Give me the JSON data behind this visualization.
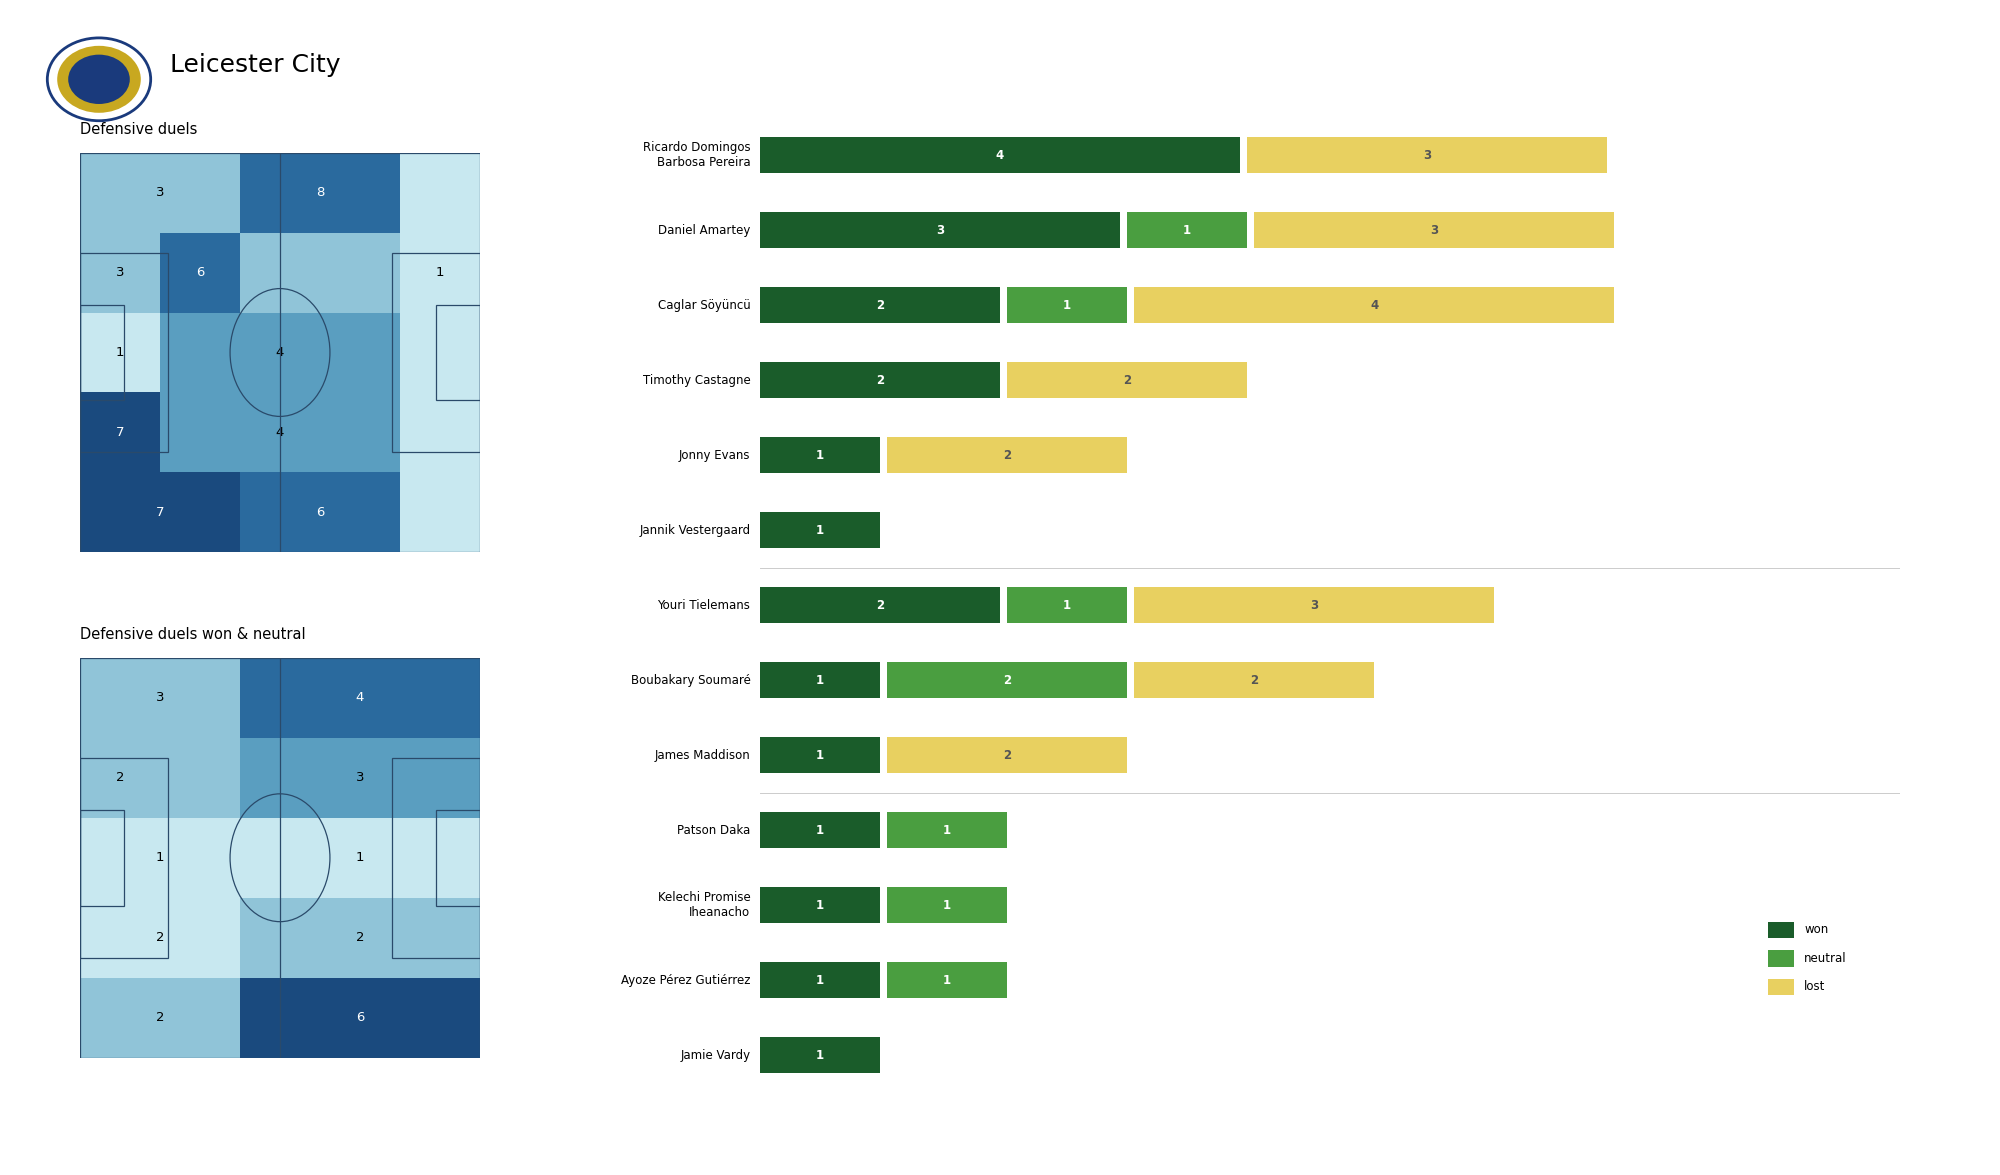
{
  "title": "Leicester City",
  "heatmap1_title": "Defensive duels",
  "heatmap2_title": "Defensive duels won & neutral",
  "players": [
    "Ricardo Domingos\nBarbosa Pereira",
    "Daniel Amartey",
    "Caglar Söyüncü",
    "Timothy Castagne",
    "Jonny Evans",
    "Jannik Vestergaard",
    "Youri Tielemans",
    "Boubakary Soumaré",
    "James Maddison",
    "Patson Daka",
    "Kelechi Promise\nIheanacho",
    "Ayoze Pérez Gutiérrez",
    "Jamie Vardy"
  ],
  "won": [
    4,
    3,
    2,
    2,
    1,
    1,
    2,
    1,
    1,
    1,
    1,
    1,
    1
  ],
  "neutral": [
    0,
    1,
    1,
    0,
    0,
    0,
    1,
    2,
    0,
    1,
    1,
    1,
    0
  ],
  "lost": [
    3,
    3,
    4,
    2,
    2,
    0,
    3,
    2,
    2,
    0,
    0,
    0,
    0
  ],
  "won_color": "#1a5c2a",
  "neutral_color": "#4a9e40",
  "lost_color": "#e8d060",
  "bg_color": "#ffffff",
  "pitch_line_color": "#2a4a6a",
  "pitch_colors": {
    "c0": "#c8e8f0",
    "c1": "#90c4d8",
    "c2": "#5a9ec0",
    "c3": "#2a6a9e",
    "c4": "#1a4a7e"
  },
  "pitch1_zones": [
    [
      0,
      8,
      4,
      2,
      "3",
      "c1"
    ],
    [
      4,
      8,
      4,
      2,
      "8",
      "c3"
    ],
    [
      8,
      8,
      2,
      2,
      "",
      "c0"
    ],
    [
      0,
      6,
      2,
      2,
      "3",
      "c1"
    ],
    [
      2,
      6,
      2,
      2,
      "6",
      "c3"
    ],
    [
      4,
      6,
      4,
      2,
      "",
      "c1"
    ],
    [
      8,
      6,
      2,
      2,
      "1",
      "c0"
    ],
    [
      0,
      4,
      2,
      2,
      "1",
      "c0"
    ],
    [
      2,
      4,
      6,
      2,
      "4",
      "c2"
    ],
    [
      8,
      4,
      2,
      2,
      "",
      "c0"
    ],
    [
      0,
      2,
      2,
      2,
      "7",
      "c4"
    ],
    [
      2,
      2,
      6,
      2,
      "4",
      "c2"
    ],
    [
      8,
      2,
      2,
      2,
      "",
      "c0"
    ],
    [
      0,
      0,
      4,
      2,
      "7",
      "c4"
    ],
    [
      4,
      0,
      4,
      2,
      "6",
      "c3"
    ],
    [
      8,
      0,
      2,
      2,
      "",
      "c0"
    ]
  ],
  "pitch2_zones": [
    [
      0,
      8,
      4,
      2,
      "3",
      "c1"
    ],
    [
      4,
      8,
      6,
      2,
      "4",
      "c3"
    ],
    [
      0,
      6,
      2,
      2,
      "2",
      "c1"
    ],
    [
      2,
      6,
      2,
      2,
      "",
      "c1"
    ],
    [
      4,
      6,
      6,
      2,
      "3",
      "c2"
    ],
    [
      0,
      4,
      4,
      2,
      "1",
      "c0"
    ],
    [
      4,
      4,
      6,
      2,
      "1",
      "c0"
    ],
    [
      0,
      2,
      4,
      2,
      "2",
      "c0"
    ],
    [
      4,
      2,
      6,
      2,
      "2",
      "c1"
    ],
    [
      0,
      0,
      4,
      2,
      "2",
      "c1"
    ],
    [
      4,
      0,
      6,
      2,
      "6",
      "c4"
    ]
  ]
}
